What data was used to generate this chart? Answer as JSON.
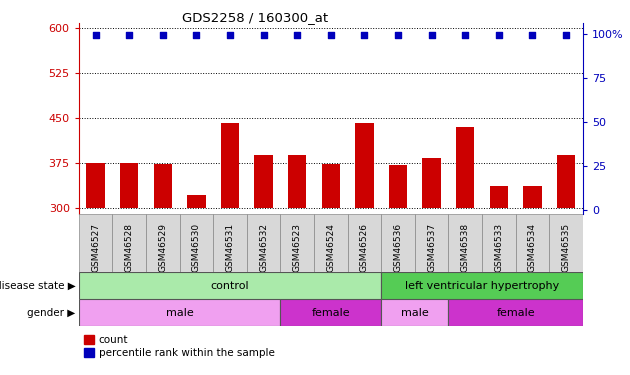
{
  "title": "GDS2258 / 160300_at",
  "samples": [
    "GSM46527",
    "GSM46528",
    "GSM46529",
    "GSM46530",
    "GSM46531",
    "GSM46532",
    "GSM46523",
    "GSM46524",
    "GSM46526",
    "GSM46536",
    "GSM46537",
    "GSM46538",
    "GSM46533",
    "GSM46534",
    "GSM46535"
  ],
  "counts": [
    375,
    375,
    374,
    322,
    443,
    388,
    388,
    374,
    442,
    372,
    383,
    435,
    337,
    337,
    388
  ],
  "percentiles": [
    99,
    99,
    99,
    99,
    99,
    99,
    99,
    99,
    99,
    99,
    99,
    99,
    99,
    99,
    99
  ],
  "ylim_left": [
    290,
    610
  ],
  "ylim_right": [
    -2.19,
    106.25
  ],
  "yticks_left": [
    300,
    375,
    450,
    525,
    600
  ],
  "yticks_right": [
    0,
    25,
    50,
    75,
    100
  ],
  "bar_color": "#cc0000",
  "dot_color": "#0000bb",
  "dot_size": 22,
  "disease_state_groups": [
    {
      "label": "control",
      "start": 0,
      "end": 9,
      "color": "#aaeaaa"
    },
    {
      "label": "left ventricular hypertrophy",
      "start": 9,
      "end": 15,
      "color": "#55cc55"
    }
  ],
  "gender_groups": [
    {
      "label": "male",
      "start": 0,
      "end": 6,
      "color": "#f0a0f0"
    },
    {
      "label": "female",
      "start": 6,
      "end": 9,
      "color": "#cc33cc"
    },
    {
      "label": "male",
      "start": 9,
      "end": 11,
      "color": "#f0a0f0"
    },
    {
      "label": "female",
      "start": 11,
      "end": 15,
      "color": "#cc33cc"
    }
  ],
  "label_disease_state": "disease state",
  "label_gender": "gender",
  "legend_count": "count",
  "legend_percentile": "percentile rank within the sample",
  "background_color": "#ffffff",
  "left_axis_color": "#cc0000",
  "right_axis_color": "#0000bb",
  "bar_width": 0.55,
  "xtick_bg": "#d8d8d8"
}
